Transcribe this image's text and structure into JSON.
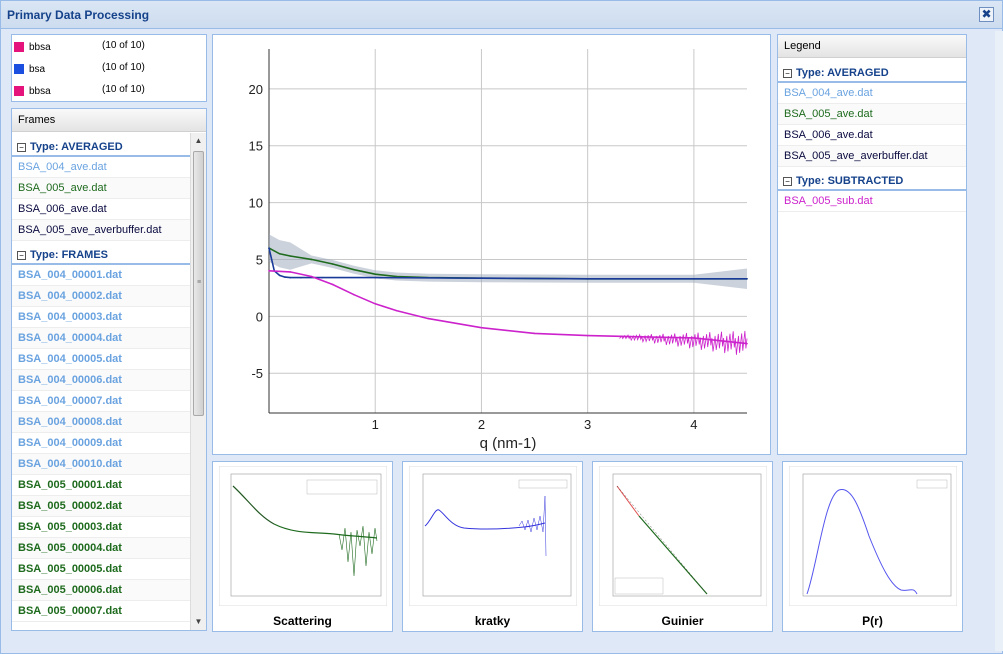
{
  "window": {
    "title": "Primary Data Processing",
    "close_glyph": "✖"
  },
  "color_legend": [
    {
      "name": "bbsa",
      "count": "(10 of 10)",
      "color": "#e5147c"
    },
    {
      "name": "bsa",
      "count": "(10 of 10)",
      "color": "#1a4fe0"
    },
    {
      "name": "bbsa",
      "count": "(10 of 10)",
      "color": "#e5147c"
    }
  ],
  "frames": {
    "header": "Frames",
    "groups": [
      {
        "label": "Type: AVERAGED",
        "toggle": "−",
        "items": [
          {
            "label": "BSA_004_ave.dat",
            "color": "#6aa3e0"
          },
          {
            "label": "BSA_005_ave.dat",
            "color": "#1e6b1e"
          },
          {
            "label": "BSA_006_ave.dat",
            "color": "#0a0a40"
          },
          {
            "label": "BSA_005_ave_averbuffer.dat",
            "color": "#0a0a40"
          }
        ]
      },
      {
        "label": "Type: FRAMES",
        "toggle": "−",
        "items": [
          {
            "label": "BSA_004_00001.dat",
            "color": "#6aa3e0"
          },
          {
            "label": "BSA_004_00002.dat",
            "color": "#6aa3e0"
          },
          {
            "label": "BSA_004_00003.dat",
            "color": "#6aa3e0"
          },
          {
            "label": "BSA_004_00004.dat",
            "color": "#6aa3e0"
          },
          {
            "label": "BSA_004_00005.dat",
            "color": "#6aa3e0"
          },
          {
            "label": "BSA_004_00006.dat",
            "color": "#6aa3e0"
          },
          {
            "label": "BSA_004_00007.dat",
            "color": "#6aa3e0"
          },
          {
            "label": "BSA_004_00008.dat",
            "color": "#6aa3e0"
          },
          {
            "label": "BSA_004_00009.dat",
            "color": "#6aa3e0"
          },
          {
            "label": "BSA_004_00010.dat",
            "color": "#6aa3e0"
          },
          {
            "label": "BSA_005_00001.dat",
            "color": "#1e6b1e"
          },
          {
            "label": "BSA_005_00002.dat",
            "color": "#1e6b1e"
          },
          {
            "label": "BSA_005_00003.dat",
            "color": "#1e6b1e"
          },
          {
            "label": "BSA_005_00004.dat",
            "color": "#1e6b1e"
          },
          {
            "label": "BSA_005_00005.dat",
            "color": "#1e6b1e"
          },
          {
            "label": "BSA_005_00006.dat",
            "color": "#1e6b1e"
          },
          {
            "label": "BSA_005_00007.dat",
            "color": "#1e6b1e"
          }
        ]
      }
    ],
    "scroll_up_glyph": "▲",
    "scroll_down_glyph": "▼",
    "scroll_grip_glyph": "≡"
  },
  "legend": {
    "header": "Legend",
    "groups": [
      {
        "label": "Type: AVERAGED",
        "toggle": "−",
        "items": [
          {
            "label": "BSA_004_ave.dat",
            "color": "#6aa3e0"
          },
          {
            "label": "BSA_005_ave.dat",
            "color": "#1e6b1e"
          },
          {
            "label": "BSA_006_ave.dat",
            "color": "#0a0a40"
          },
          {
            "label": "BSA_005_ave_averbuffer.dat",
            "color": "#0a0a40"
          }
        ]
      },
      {
        "label": "Type: SUBTRACTED",
        "toggle": "−",
        "items": [
          {
            "label": "BSA_005_sub.dat",
            "color": "#cc22cc"
          }
        ]
      }
    ]
  },
  "chart_data": {
    "type": "line",
    "title": "",
    "xlabel": "q (nm-1)",
    "ylabel": "",
    "xlim": [
      0,
      4.5
    ],
    "ylim": [
      -8.5,
      23.5
    ],
    "xticks": [
      1,
      2,
      3,
      4
    ],
    "yticks": [
      20,
      15,
      10,
      5,
      0,
      -5
    ],
    "grid": true,
    "series": [
      {
        "color": "#1e6b1e",
        "x": [
          0.0,
          0.1,
          0.2,
          0.4,
          0.6,
          0.8,
          1.0,
          1.2,
          1.5,
          2.0,
          3.0,
          4.0,
          4.5
        ],
        "y": [
          6.0,
          5.5,
          5.3,
          5.0,
          4.6,
          4.1,
          3.7,
          3.5,
          3.4,
          3.35,
          3.3,
          3.3,
          3.3
        ]
      },
      {
        "color": "#1a3a9a",
        "x": [
          0.0,
          0.05,
          0.1,
          0.15,
          0.2,
          0.3,
          0.5,
          1.0,
          2.0,
          3.0,
          4.0,
          4.5
        ],
        "y": [
          6.0,
          4.0,
          3.6,
          3.45,
          3.4,
          3.4,
          3.4,
          3.4,
          3.35,
          3.3,
          3.3,
          3.3
        ]
      },
      {
        "color": "#cc22cc",
        "x": [
          0.0,
          0.2,
          0.4,
          0.6,
          0.8,
          1.0,
          1.2,
          1.5,
          2.0,
          2.5,
          3.0,
          3.5,
          4.0,
          4.5
        ],
        "y": [
          4.0,
          3.9,
          3.5,
          2.8,
          1.9,
          1.1,
          0.5,
          -0.2,
          -1.0,
          -1.5,
          -1.7,
          -1.8,
          -1.9,
          -2.4
        ]
      }
    ]
  },
  "thumbnails": [
    {
      "label": "Scattering",
      "legend": [
        "Experimental curve",
        "Experimental curve (cropped)",
        "SASFit fitted curve"
      ]
    },
    {
      "label": "kratky",
      "legend": [
        "Experimental curve"
      ]
    },
    {
      "label": "Guinier",
      "legend": [
        "Experimental curve",
        "Guinier region",
        "ln(I(q)) = ..."
      ]
    },
    {
      "label": "P(r)",
      "legend": [
        "Density"
      ]
    }
  ]
}
